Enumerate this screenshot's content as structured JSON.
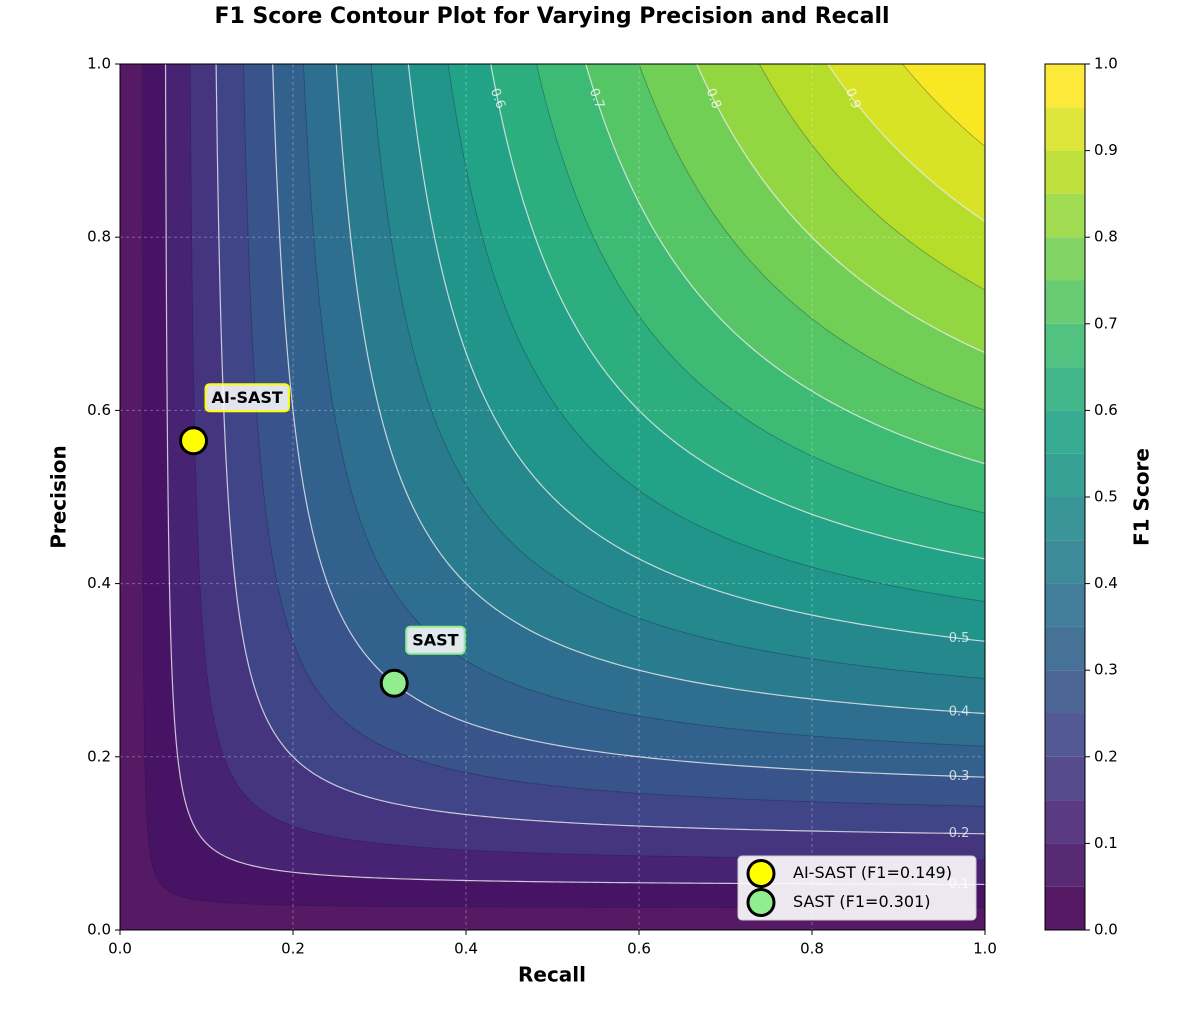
{
  "chart_data": {
    "type": "contour",
    "title": "F1 Score Contour Plot for Varying Precision and Recall",
    "x_label": "Recall",
    "y_label": "Precision",
    "colorbar_label": "F1 Score",
    "colormap": "viridis",
    "xlim": [
      0,
      1
    ],
    "ylim": [
      0,
      1
    ],
    "xticks": [
      {
        "value": 0,
        "label": "0.0"
      },
      0.2,
      0.4,
      0.6,
      0.8,
      {
        "value": 1,
        "label": "1.0"
      }
    ],
    "yticks": [
      {
        "value": 0,
        "label": "0.0"
      },
      0.2,
      0.4,
      0.6,
      0.8,
      {
        "value": 1,
        "label": "1.0"
      }
    ],
    "grid": true,
    "fill_levels": [
      0,
      0.05,
      0.1,
      0.15,
      0.2,
      0.25,
      0.3,
      0.35,
      0.4,
      0.45,
      0.5,
      0.55,
      0.6,
      0.65,
      0.7,
      0.75,
      0.8,
      0.85,
      0.9,
      0.95,
      1
    ],
    "contour_levels": [
      0.1,
      0.2,
      0.3,
      0.4,
      0.5,
      0.6,
      0.7,
      0.8,
      0.9
    ],
    "colorbar_ticks": [
      {
        "value": 0,
        "label": "0.0"
      },
      0.1,
      0.2,
      0.3,
      0.4,
      0.5,
      0.6,
      0.7,
      0.8,
      0.9,
      {
        "value": 1,
        "label": "1.0"
      }
    ],
    "legend": "lower right",
    "series": [
      {
        "name": "AI-SAST (F1=0.149)",
        "annotation": "AI-SAST",
        "color": "#ffff00",
        "x": [
          0.085
        ],
        "values": [
          0.565
        ]
      },
      {
        "name": "SAST (F1=0.301)",
        "annotation": "SAST",
        "color": "#90ee90",
        "x": [
          0.317
        ],
        "values": [
          0.285
        ]
      }
    ]
  }
}
